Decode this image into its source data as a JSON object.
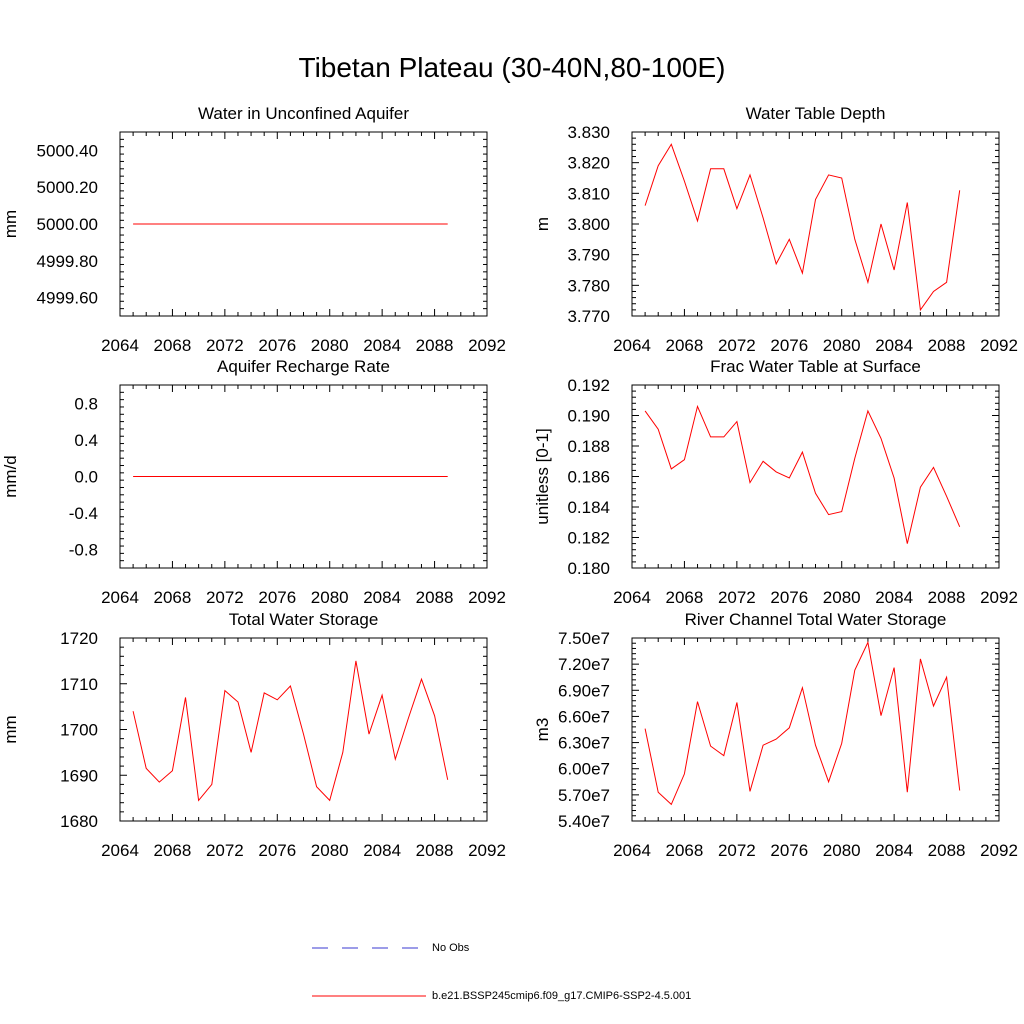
{
  "page": {
    "title": "Tibetan Plateau (30-40N,80-100E)"
  },
  "legend": {
    "obs_label": "No Obs",
    "model_label": "b.e21.BSSP245cmip6.f09_g17.CMIP6-SSP2-4.5.001",
    "obs_color": "#3a3ad0",
    "model_color": "#ff0000"
  },
  "chart_data": [
    {
      "type": "line",
      "title": "Water in Unconfined Aquifer",
      "ylabel": "mm",
      "xlim": [
        2064,
        2092
      ],
      "ylim": [
        4999.5,
        5000.5
      ],
      "xticks": [
        "2064",
        "2068",
        "2072",
        "2076",
        "2080",
        "2084",
        "2088",
        "2092"
      ],
      "yticks": [
        "4999.60",
        "4999.80",
        "5000.00",
        "5000.20",
        "5000.40"
      ],
      "x": [
        2065,
        2066,
        2067,
        2068,
        2069,
        2070,
        2071,
        2072,
        2073,
        2074,
        2075,
        2076,
        2077,
        2078,
        2079,
        2080,
        2081,
        2082,
        2083,
        2084,
        2085,
        2086,
        2087,
        2088,
        2089
      ],
      "series": [
        {
          "values": [
            5000,
            5000,
            5000,
            5000,
            5000,
            5000,
            5000,
            5000,
            5000,
            5000,
            5000,
            5000,
            5000,
            5000,
            5000,
            5000,
            5000,
            5000,
            5000,
            5000,
            5000,
            5000,
            5000,
            5000,
            5000
          ]
        }
      ]
    },
    {
      "type": "line",
      "title": "Water Table Depth",
      "ylabel": "m",
      "xlim": [
        2064,
        2092
      ],
      "ylim": [
        3.77,
        3.83
      ],
      "xticks": [
        "2064",
        "2068",
        "2072",
        "2076",
        "2080",
        "2084",
        "2088",
        "2092"
      ],
      "yticks": [
        "3.770",
        "3.780",
        "3.790",
        "3.800",
        "3.810",
        "3.820",
        "3.830"
      ],
      "x": [
        2065,
        2066,
        2067,
        2068,
        2069,
        2070,
        2071,
        2072,
        2073,
        2074,
        2075,
        2076,
        2077,
        2078,
        2079,
        2080,
        2081,
        2082,
        2083,
        2084,
        2085,
        2086,
        2087,
        2088,
        2089
      ],
      "series": [
        {
          "values": [
            3.806,
            3.819,
            3.826,
            3.814,
            3.801,
            3.818,
            3.818,
            3.805,
            3.816,
            3.802,
            3.787,
            3.795,
            3.784,
            3.808,
            3.816,
            3.815,
            3.795,
            3.781,
            3.8,
            3.785,
            3.807,
            3.772,
            3.778,
            3.781,
            3.811
          ]
        }
      ]
    },
    {
      "type": "line",
      "title": "Aquifer Recharge Rate",
      "ylabel": "mm/d",
      "xlim": [
        2064,
        2092
      ],
      "ylim": [
        -1.0,
        1.0
      ],
      "xticks": [
        "2064",
        "2068",
        "2072",
        "2076",
        "2080",
        "2084",
        "2088",
        "2092"
      ],
      "yticks": [
        "-0.8",
        "-0.4",
        "0.0",
        "0.4",
        "0.8"
      ],
      "x": [
        2065,
        2066,
        2067,
        2068,
        2069,
        2070,
        2071,
        2072,
        2073,
        2074,
        2075,
        2076,
        2077,
        2078,
        2079,
        2080,
        2081,
        2082,
        2083,
        2084,
        2085,
        2086,
        2087,
        2088,
        2089
      ],
      "series": [
        {
          "values": [
            0,
            0,
            0,
            0,
            0,
            0,
            0,
            0,
            0,
            0,
            0,
            0,
            0,
            0,
            0,
            0,
            0,
            0,
            0,
            0,
            0,
            0,
            0,
            0,
            0
          ]
        }
      ]
    },
    {
      "type": "line",
      "title": "Frac Water Table at Surface",
      "ylabel": "unitless [0-1]",
      "xlim": [
        2064,
        2092
      ],
      "ylim": [
        0.18,
        0.192
      ],
      "xticks": [
        "2064",
        "2068",
        "2072",
        "2076",
        "2080",
        "2084",
        "2088",
        "2092"
      ],
      "yticks": [
        "0.180",
        "0.182",
        "0.184",
        "0.186",
        "0.188",
        "0.190",
        "0.192"
      ],
      "x": [
        2065,
        2066,
        2067,
        2068,
        2069,
        2070,
        2071,
        2072,
        2073,
        2074,
        2075,
        2076,
        2077,
        2078,
        2079,
        2080,
        2081,
        2082,
        2083,
        2084,
        2085,
        2086,
        2087,
        2088,
        2089
      ],
      "series": [
        {
          "values": [
            0.1903,
            0.1891,
            0.1865,
            0.1871,
            0.1906,
            0.1886,
            0.1886,
            0.1896,
            0.1856,
            0.187,
            0.1863,
            0.1859,
            0.1876,
            0.1849,
            0.1835,
            0.1837,
            0.1872,
            0.1903,
            0.1885,
            0.1859,
            0.1816,
            0.1853,
            0.1866,
            0.1847,
            0.1827
          ]
        }
      ]
    },
    {
      "type": "line",
      "title": "Total Water Storage",
      "ylabel": "mm",
      "xlim": [
        2064,
        2092
      ],
      "ylim": [
        1680,
        1720
      ],
      "xticks": [
        "2064",
        "2068",
        "2072",
        "2076",
        "2080",
        "2084",
        "2088",
        "2092"
      ],
      "yticks": [
        "1680",
        "1690",
        "1700",
        "1710",
        "1720"
      ],
      "x": [
        2065,
        2066,
        2067,
        2068,
        2069,
        2070,
        2071,
        2072,
        2073,
        2074,
        2075,
        2076,
        2077,
        2078,
        2079,
        2080,
        2081,
        2082,
        2083,
        2084,
        2085,
        2086,
        2087,
        2088,
        2089
      ],
      "series": [
        {
          "values": [
            1704,
            1691.5,
            1688.5,
            1691,
            1707,
            1684.5,
            1688,
            1708.5,
            1706,
            1695,
            1708,
            1706.5,
            1709.5,
            1699,
            1687.5,
            1684.5,
            1695,
            1715,
            1699,
            1707.5,
            1693.5,
            1702.5,
            1711,
            1703,
            1689
          ]
        }
      ]
    },
    {
      "type": "line",
      "title": "River Channel Total Water Storage",
      "ylabel": "m3",
      "xlim": [
        2064,
        2092
      ],
      "ylim": [
        54000000,
        75000000
      ],
      "xticks": [
        "2064",
        "2068",
        "2072",
        "2076",
        "2080",
        "2084",
        "2088",
        "2092"
      ],
      "yticks": [
        "5.40e7",
        "5.70e7",
        "6.00e7",
        "6.30e7",
        "6.60e7",
        "6.90e7",
        "7.20e7",
        "7.50e7"
      ],
      "x": [
        2065,
        2066,
        2067,
        2068,
        2069,
        2070,
        2071,
        2072,
        2073,
        2074,
        2075,
        2076,
        2077,
        2078,
        2079,
        2080,
        2081,
        2082,
        2083,
        2084,
        2085,
        2086,
        2087,
        2088,
        2089
      ],
      "series": [
        {
          "values": [
            64600000,
            57300000,
            55900000,
            59400000,
            67700000,
            62600000,
            61500000,
            67600000,
            57400000,
            62700000,
            63400000,
            64700000,
            69300000,
            62700000,
            58500000,
            62900000,
            71300000,
            74500000,
            66100000,
            71600000,
            57300000,
            72600000,
            67200000,
            70500000,
            57500000
          ]
        }
      ]
    }
  ]
}
